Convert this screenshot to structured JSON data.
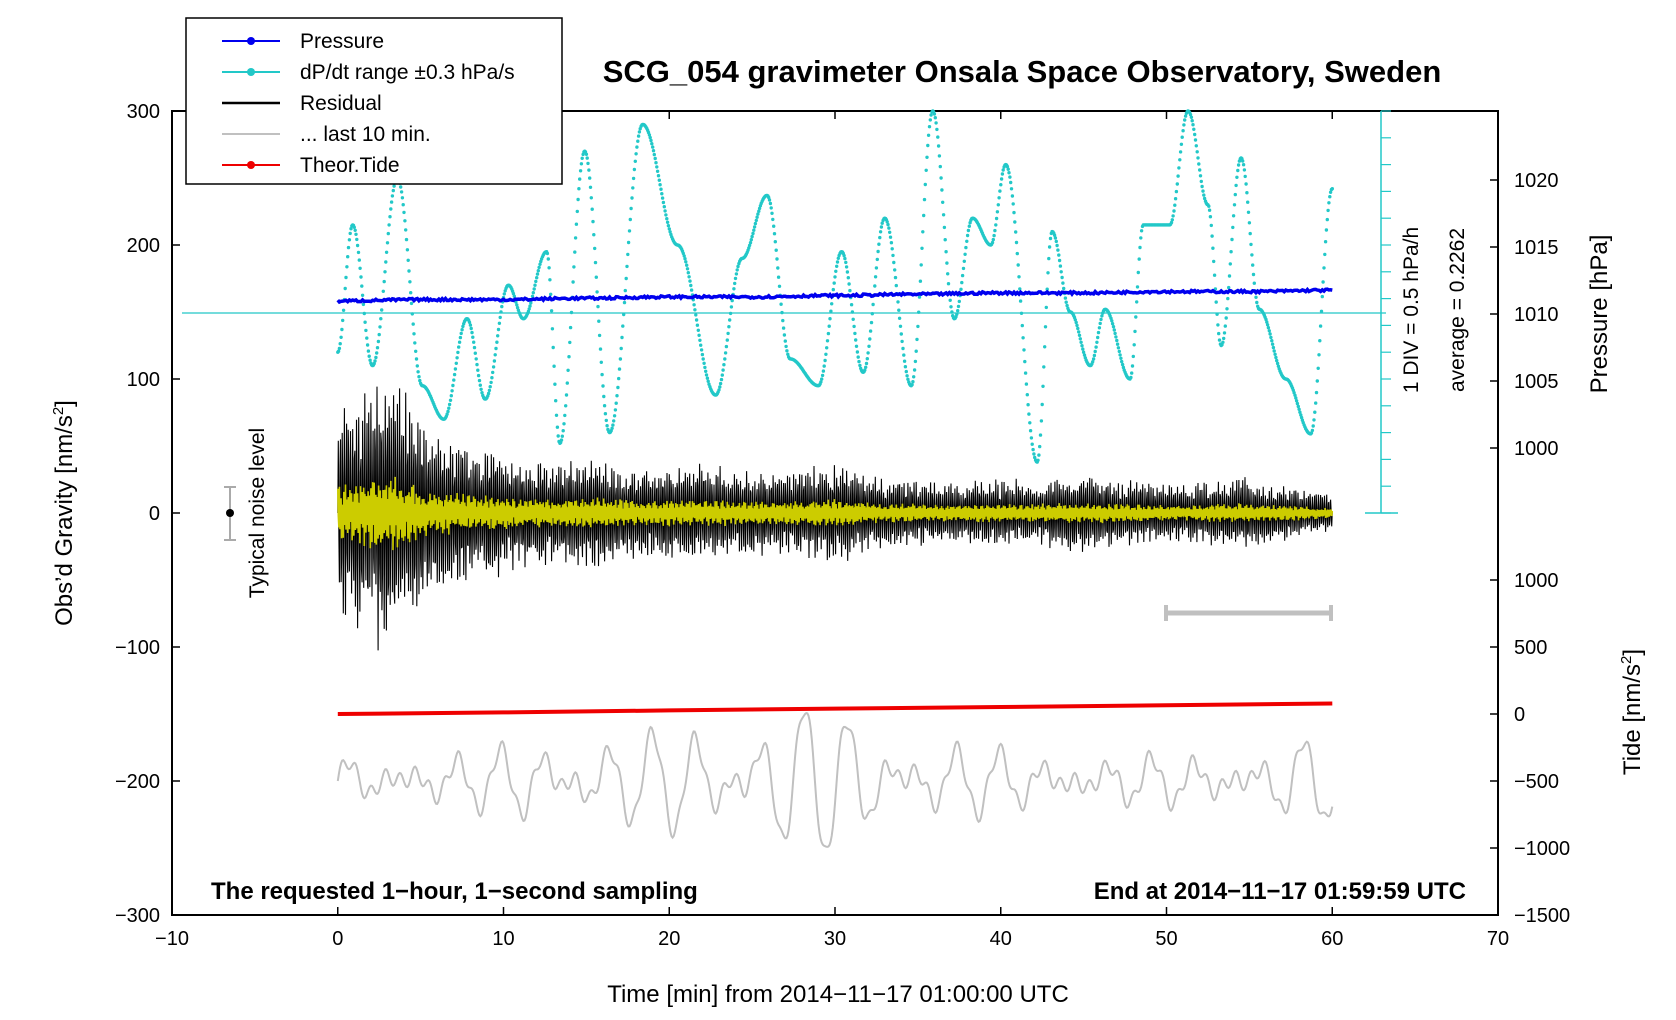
{
  "title": "SCG_054 gravimeter Onsala Space Observatory, Sweden",
  "xlabel": "Time [min] from 2014−11−17 01:00:00 UTC",
  "ylabel_left_main": "Obs’d Gravity [nm/s",
  "ylabel_left_sup": "2",
  "ylabel_left_close": "]",
  "ylabel_right_pressure": "Pressure [hPa]",
  "ylabel_right_tide_main": "Tide [nm/s",
  "ylabel_right_tide_sup": "2",
  "ylabel_right_tide_close": "]",
  "footer_left": "The requested 1−hour, 1−second sampling",
  "footer_right": "End at 2014−11−17 01:59:59 UTC",
  "noise_label": "Typical noise level",
  "div_label": "1 DIV = 0.5 hPa/h",
  "average_label": "average = 0.2262",
  "colors": {
    "pressure": "#0000ee",
    "dpdt": "#22c8c8",
    "residual": "#000000",
    "last10": "#c0c0c0",
    "tide": "#ee0000",
    "yellow": "#cccc00"
  },
  "chart_data": {
    "type": "line",
    "x_axis": {
      "min": -10,
      "max": 70,
      "ticks": [
        "−10",
        "0",
        "10",
        "20",
        "30",
        "40",
        "50",
        "60",
        "70"
      ]
    },
    "y_left": {
      "min": -300,
      "max": 300,
      "ticks": [
        "300",
        "200",
        "100",
        "0",
        "−100",
        "−200",
        "−300"
      ]
    },
    "y_right_pressure": {
      "ticks": [
        "1020",
        "1015",
        "1010",
        "1005",
        "1000"
      ]
    },
    "y_right_tide": {
      "ticks": [
        "1000",
        "500",
        "0",
        "−500",
        "−1000",
        "−1500"
      ]
    },
    "legend": [
      {
        "label": "Pressure",
        "color": "#0000ee",
        "marker": true
      },
      {
        "label": "dP/dt range ±0.3 hPa/s",
        "color": "#22c8c8",
        "marker": true
      },
      {
        "label": "Residual",
        "color": "#000000",
        "marker": false
      },
      {
        "label": "... last 10 min.",
        "color": "#c0c0c0",
        "marker": false
      },
      {
        "label": "Theor.Tide",
        "color": "#ee0000",
        "marker": true
      }
    ],
    "series": [
      {
        "name": "Pressure",
        "unit": "hPa",
        "x": [
          0,
          5,
          10,
          15,
          20,
          25,
          30,
          35,
          40,
          45,
          50,
          55,
          60
        ],
        "y": [
          1010.9,
          1011.0,
          1011.0,
          1011.1,
          1011.2,
          1011.2,
          1011.3,
          1011.4,
          1011.5,
          1011.5,
          1011.6,
          1011.6,
          1011.7
        ]
      },
      {
        "name": "dP/dt range ±0.3 hPa/s",
        "unit": "nm/s2 axis",
        "x": [
          0,
          0.9,
          2.1,
          3.6,
          5.1,
          6.4,
          7.8,
          8.9,
          10.3,
          11.2,
          12.6,
          13.4,
          14.9,
          16.4,
          18.4,
          20.5,
          22.8,
          24.4,
          25.9,
          27.3,
          29.0,
          30.4,
          31.7,
          33.0,
          34.6,
          35.9,
          37.2,
          38.3,
          39.4,
          40.3,
          42.2,
          43.1,
          44.2,
          45.4,
          46.3,
          47.8,
          48.6,
          50.2,
          51.3,
          52.5,
          53.3,
          54.5,
          55.6,
          57.2,
          58.7,
          60.0
        ],
        "y": [
          120,
          215,
          110,
          250,
          95,
          70,
          145,
          85,
          170,
          145,
          195,
          52,
          270,
          60,
          290,
          200,
          88,
          190,
          237,
          115,
          95,
          195,
          105,
          220,
          95,
          300,
          145,
          220,
          200,
          260,
          38,
          210,
          150,
          110,
          152,
          100,
          215,
          215,
          300,
          230,
          125,
          265,
          152,
          100,
          59,
          242
        ]
      },
      {
        "name": "Residual",
        "unit": "nm/s2",
        "x": [
          0,
          3,
          6,
          9,
          12,
          15,
          18,
          21,
          24,
          27,
          30,
          33,
          36,
          39,
          42,
          45,
          48,
          51,
          54,
          57,
          60
        ],
        "y_amplitude": [
          80,
          105,
          60,
          50,
          40,
          45,
          35,
          38,
          35,
          32,
          38,
          28,
          25,
          25,
          26,
          30,
          25,
          22,
          28,
          22,
          15
        ]
      },
      {
        "name": "... last 10 min.",
        "unit": "nm/s2",
        "x_range": [
          0,
          60
        ],
        "y_center": -200
      },
      {
        "name": "Theor.Tide",
        "unit": "nm/s2",
        "x": [
          0,
          10,
          20,
          30,
          40,
          50,
          60
        ],
        "y": [
          0,
          12,
          27,
          40,
          52,
          65,
          78
        ]
      }
    ]
  }
}
